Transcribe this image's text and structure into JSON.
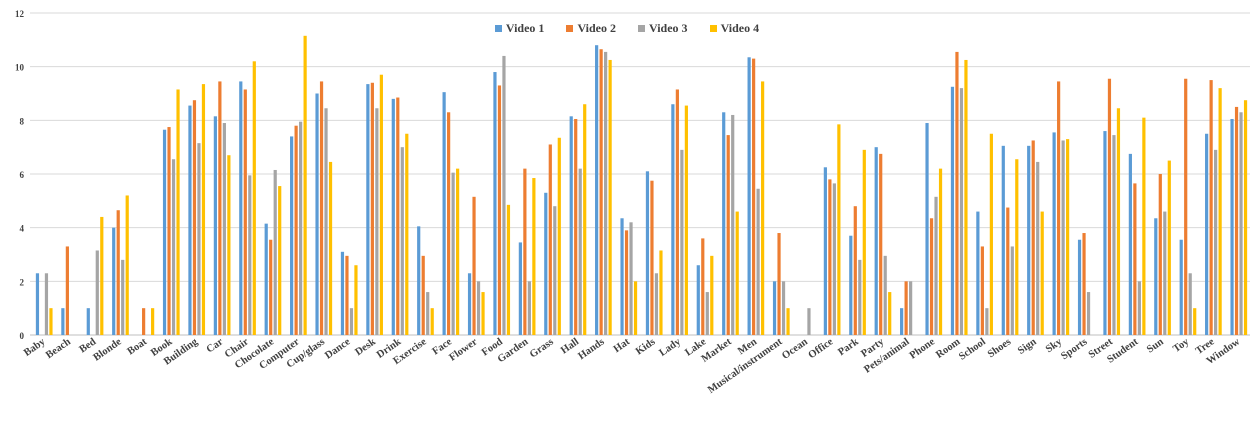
{
  "chart_data": {
    "type": "bar",
    "title": "",
    "xlabel": "",
    "ylabel": "",
    "ylim": [
      0,
      12
    ],
    "yticks": [
      0,
      2,
      4,
      6,
      8,
      10,
      12
    ],
    "grid": true,
    "legend_position": "top-center",
    "categories": [
      "Baby",
      "Beach",
      "Bed",
      "Blonde",
      "Boat",
      "Book",
      "Building",
      "Car",
      "Chair",
      "Chocolate",
      "Computer",
      "Cup/glass",
      "Dance",
      "Desk",
      "Drink",
      "Exercise",
      "Face",
      "Flower",
      "Food",
      "Garden",
      "Grass",
      "Hall",
      "Hands",
      "Hat",
      "Kids",
      "Lady",
      "Lake",
      "Market",
      "Men",
      "Musical/instrument",
      "Ocean",
      "Office",
      "Park",
      "Party",
      "Pets/animal",
      "Phone",
      "Room",
      "School",
      "Shoes",
      "Sign",
      "Sky",
      "Sports",
      "Street",
      "Student",
      "Sun",
      "Toy",
      "Tree",
      "Window"
    ],
    "series": [
      {
        "name": "Video 1",
        "color": "#5b9bd5",
        "values": [
          2.3,
          1.0,
          1.0,
          4.0,
          0,
          7.65,
          8.55,
          8.15,
          9.45,
          4.15,
          7.4,
          9.0,
          3.1,
          9.35,
          8.8,
          4.05,
          9.05,
          2.3,
          9.8,
          3.45,
          5.3,
          8.15,
          10.8,
          4.35,
          6.1,
          8.6,
          2.6,
          8.3,
          10.35,
          2.0,
          0,
          6.25,
          3.7,
          7.0,
          1.0,
          7.9,
          9.25,
          4.6,
          7.05,
          7.05,
          7.55,
          3.55,
          7.6,
          6.75,
          4.35,
          3.55,
          7.5,
          8.05
        ]
      },
      {
        "name": "Video 2",
        "color": "#ed7d31",
        "values": [
          0,
          3.3,
          0,
          4.65,
          1.0,
          7.75,
          8.75,
          9.45,
          9.15,
          3.55,
          7.8,
          9.45,
          2.95,
          9.4,
          8.85,
          2.95,
          8.3,
          5.15,
          9.3,
          6.2,
          7.1,
          8.05,
          10.65,
          3.9,
          5.75,
          9.15,
          3.6,
          7.45,
          10.3,
          3.8,
          0,
          5.8,
          4.8,
          6.75,
          2.0,
          4.35,
          10.55,
          3.3,
          4.75,
          7.25,
          9.45,
          3.8,
          9.55,
          5.65,
          6.0,
          9.55,
          9.5,
          8.5
        ]
      },
      {
        "name": "Video 3",
        "color": "#a5a5a5",
        "values": [
          2.3,
          0,
          3.15,
          2.8,
          0,
          6.55,
          7.15,
          7.9,
          5.95,
          6.15,
          7.95,
          8.45,
          1.0,
          8.45,
          7.0,
          1.6,
          6.05,
          2.0,
          10.4,
          2.0,
          4.8,
          6.2,
          10.55,
          4.2,
          2.3,
          6.9,
          1.6,
          8.2,
          5.45,
          2.0,
          1.0,
          5.65,
          2.8,
          2.95,
          2.0,
          5.15,
          9.2,
          1.0,
          3.3,
          6.45,
          7.25,
          1.6,
          7.45,
          2.0,
          4.6,
          2.3,
          6.9,
          8.3
        ]
      },
      {
        "name": "Video 4",
        "color": "#ffc000",
        "values": [
          1.0,
          0,
          4.4,
          5.2,
          1.0,
          9.15,
          9.35,
          6.7,
          10.2,
          5.55,
          11.15,
          6.45,
          2.6,
          9.7,
          7.5,
          1.0,
          6.2,
          1.6,
          4.85,
          5.85,
          7.35,
          8.6,
          10.25,
          2.0,
          3.15,
          8.55,
          2.95,
          4.6,
          9.45,
          1.0,
          0,
          7.85,
          6.9,
          1.6,
          0,
          6.2,
          10.25,
          7.5,
          6.55,
          4.6,
          7.3,
          0,
          8.45,
          8.1,
          6.5,
          1.0,
          9.2,
          8.75
        ]
      }
    ]
  }
}
